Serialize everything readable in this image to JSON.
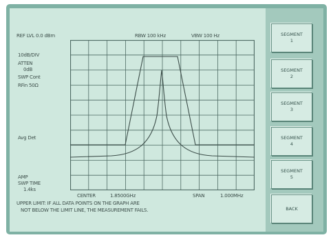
{
  "header": {
    "ref_level": "REF LVL 0.0 dBm",
    "rbw": "RBW 100 kHz",
    "vbw": "VBW 100 Hz"
  },
  "left_labels": {
    "scale": "10dB/DIV",
    "atten_line1": "ATTEN",
    "atten_line2": "0dB",
    "swp_cont": "SWP Cont",
    "rfin": "RFin 50Ω",
    "avg_det": "Avg Det",
    "amp": "AMP",
    "swp_time_label": "SWP TIME",
    "swp_time_value": "1.4ks"
  },
  "footer": {
    "center": "CENTER",
    "center_value": "1.8500GHz",
    "span": "SPAN",
    "span_value": "1.000MHz"
  },
  "message": {
    "line1": "UPPER LIMIT:  IF ALL DATA POINTS ON THE GRAPH ARE",
    "line2": "NOT BELOW THE LIMIT LINE, THE MEASUREMENT FAILS."
  },
  "softkeys": [
    {
      "label": "SEGMENT\n1"
    },
    {
      "label": "SEGMENT\n2"
    },
    {
      "label": "SEGMENT\n3"
    },
    {
      "label": "SEGMENT\n4"
    },
    {
      "label": "SEGMENT\n5"
    },
    {
      "label": "BACK"
    }
  ],
  "colors": {
    "screen_bg": "#cfe8de",
    "grid": "#4e6a63",
    "trace": "#3c4d49"
  }
}
